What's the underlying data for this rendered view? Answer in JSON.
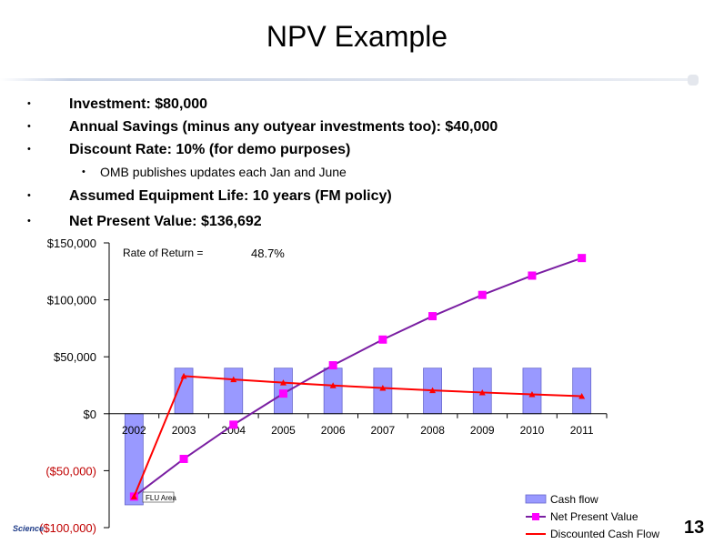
{
  "slide": {
    "title": "NPV Example",
    "page_number": "13",
    "footer_logo": "Science"
  },
  "bullets": [
    {
      "text": "Investment: $80,000"
    },
    {
      "text": "Annual Savings (minus any outyear investments too): $40,000"
    },
    {
      "text": "Discount Rate: 10% (for demo purposes)"
    },
    {
      "text": "OMB publishes updates each Jan and June"
    },
    {
      "text": "Assumed Equipment Life: 10 years (FM policy)"
    },
    {
      "text": "Net Present Value: $136,692"
    }
  ],
  "chart_data": {
    "type": "bar",
    "categories": [
      "2002",
      "2003",
      "2004",
      "2005",
      "2006",
      "2007",
      "2008",
      "2009",
      "2010",
      "2011"
    ],
    "series": [
      {
        "name": "Cash flow",
        "kind": "bar",
        "color": "#9999ff",
        "values": [
          -80000,
          40000,
          40000,
          40000,
          40000,
          40000,
          40000,
          40000,
          40000,
          40000
        ]
      },
      {
        "name": "Net Present Value",
        "kind": "line",
        "color": "#7a1fa2",
        "marker_color": "#ff00ff",
        "values": [
          -72727,
          -39669,
          -9617,
          17704,
          42541,
          65120,
          85646,
          104306,
          121270,
          136692
        ]
      },
      {
        "name": "Discounted Cash Flow",
        "kind": "line",
        "color": "#ff0000",
        "values": [
          -72727,
          33058,
          30053,
          27321,
          24837,
          22579,
          20526,
          18660,
          16964,
          15422
        ]
      }
    ],
    "yticks": [
      "$150,000",
      "$100,000",
      "$50,000",
      "$0",
      "($50,000)",
      "($100,000)"
    ],
    "ytick_values": [
      150000,
      100000,
      50000,
      0,
      -50000,
      -100000
    ],
    "ylim": [
      -100000,
      150000
    ],
    "annotation_label": "Rate of Return  =",
    "annotation_value": "48.7%",
    "point_label": "FLU Area",
    "legend_position": "bottom-right"
  }
}
